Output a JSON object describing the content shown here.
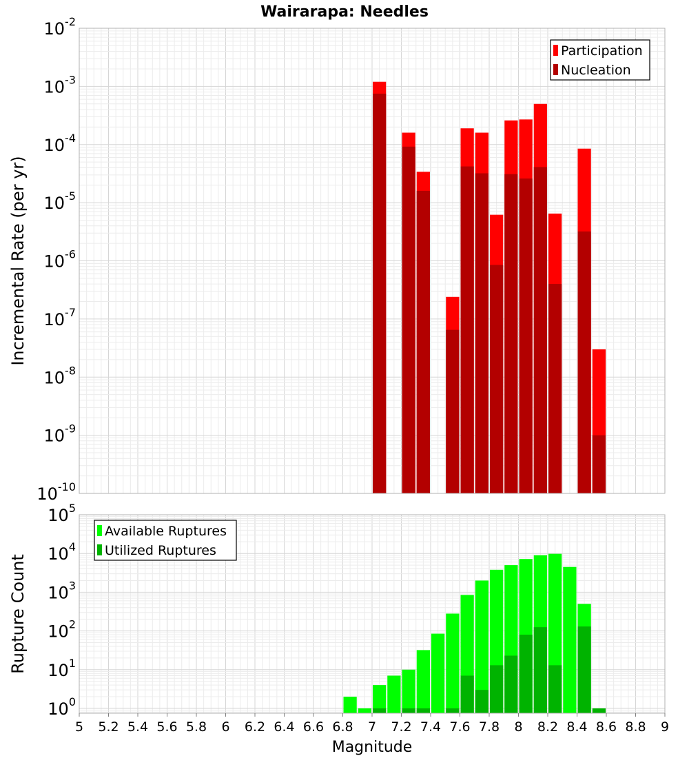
{
  "chart_data": [
    {
      "type": "bar",
      "title": "Wairarapa: Needles",
      "xlabel": "",
      "ylabel": "Incremental Rate (per yr)",
      "xlim": [
        5,
        9
      ],
      "ylim": [
        1e-10,
        0.01
      ],
      "yscale": "log",
      "ytick_exponents": [
        "-2",
        "-3",
        "-4",
        "-5",
        "-6",
        "-7",
        "-8",
        "-9",
        "-10"
      ],
      "ytick_base": "10",
      "grid": true,
      "legend_position": "top-right",
      "series": [
        {
          "name": "Participation",
          "color": "#ff0000",
          "points": [
            {
              "x": 7.05,
              "y": 0.0012
            },
            {
              "x": 7.25,
              "y": 0.00016
            },
            {
              "x": 7.35,
              "y": 3.4e-05
            },
            {
              "x": 7.55,
              "y": 2.4e-07
            },
            {
              "x": 7.65,
              "y": 0.00019
            },
            {
              "x": 7.75,
              "y": 0.00016
            },
            {
              "x": 7.85,
              "y": 6.2e-06
            },
            {
              "x": 7.95,
              "y": 0.00026
            },
            {
              "x": 8.05,
              "y": 0.00027
            },
            {
              "x": 8.15,
              "y": 0.0005
            },
            {
              "x": 8.25,
              "y": 6.5e-06
            },
            {
              "x": 8.45,
              "y": 8.5e-05
            },
            {
              "x": 8.55,
              "y": 3e-08
            }
          ]
        },
        {
          "name": "Nucleation",
          "color": "#b30000",
          "points": [
            {
              "x": 7.05,
              "y": 0.00075
            },
            {
              "x": 7.25,
              "y": 9.2e-05
            },
            {
              "x": 7.35,
              "y": 1.6e-05
            },
            {
              "x": 7.55,
              "y": 6.5e-08
            },
            {
              "x": 7.65,
              "y": 4.2e-05
            },
            {
              "x": 7.75,
              "y": 3.2e-05
            },
            {
              "x": 7.85,
              "y": 8.5e-07
            },
            {
              "x": 7.95,
              "y": 3.1e-05
            },
            {
              "x": 8.05,
              "y": 2.6e-05
            },
            {
              "x": 8.15,
              "y": 4.1e-05
            },
            {
              "x": 8.25,
              "y": 4e-07
            },
            {
              "x": 8.45,
              "y": 3.2e-06
            },
            {
              "x": 8.55,
              "y": 1e-09
            }
          ]
        }
      ]
    },
    {
      "type": "bar",
      "title": "",
      "xlabel": "Magnitude",
      "ylabel": "Rupture Count",
      "xlim": [
        5,
        9
      ],
      "xticks": [
        "5",
        "5.2",
        "5.4",
        "5.6",
        "5.8",
        "6",
        "6.2",
        "6.4",
        "6.6",
        "6.8",
        "7",
        "7.2",
        "7.4",
        "7.6",
        "7.8",
        "8",
        "8.2",
        "8.4",
        "8.6",
        "8.8",
        "9"
      ],
      "ylim": [
        0.75,
        100000
      ],
      "yscale": "log",
      "ytick_exponents": [
        "5",
        "4",
        "3",
        "2",
        "1",
        "0"
      ],
      "ytick_base": "10",
      "grid": true,
      "legend_position": "top-left",
      "series": [
        {
          "name": "Available Ruptures",
          "color": "#00ff00",
          "points": [
            {
              "x": 6.85,
              "y": 2
            },
            {
              "x": 6.95,
              "y": 1
            },
            {
              "x": 7.05,
              "y": 4
            },
            {
              "x": 7.15,
              "y": 7
            },
            {
              "x": 7.25,
              "y": 10
            },
            {
              "x": 7.35,
              "y": 32
            },
            {
              "x": 7.45,
              "y": 85
            },
            {
              "x": 7.55,
              "y": 280
            },
            {
              "x": 7.65,
              "y": 850
            },
            {
              "x": 7.75,
              "y": 2000
            },
            {
              "x": 7.85,
              "y": 3800
            },
            {
              "x": 7.95,
              "y": 5000
            },
            {
              "x": 8.05,
              "y": 7200
            },
            {
              "x": 8.15,
              "y": 9000
            },
            {
              "x": 8.25,
              "y": 9800
            },
            {
              "x": 8.35,
              "y": 4500
            },
            {
              "x": 8.45,
              "y": 500
            }
          ]
        },
        {
          "name": "Utilized Ruptures",
          "color": "#00b300",
          "points": [
            {
              "x": 7.05,
              "y": 1
            },
            {
              "x": 7.25,
              "y": 1
            },
            {
              "x": 7.35,
              "y": 1
            },
            {
              "x": 7.55,
              "y": 1
            },
            {
              "x": 7.65,
              "y": 7
            },
            {
              "x": 7.75,
              "y": 3
            },
            {
              "x": 7.85,
              "y": 13
            },
            {
              "x": 7.95,
              "y": 23
            },
            {
              "x": 8.05,
              "y": 80
            },
            {
              "x": 8.15,
              "y": 125
            },
            {
              "x": 8.25,
              "y": 13
            },
            {
              "x": 8.45,
              "y": 130
            },
            {
              "x": 8.55,
              "y": 1
            }
          ]
        }
      ]
    }
  ]
}
